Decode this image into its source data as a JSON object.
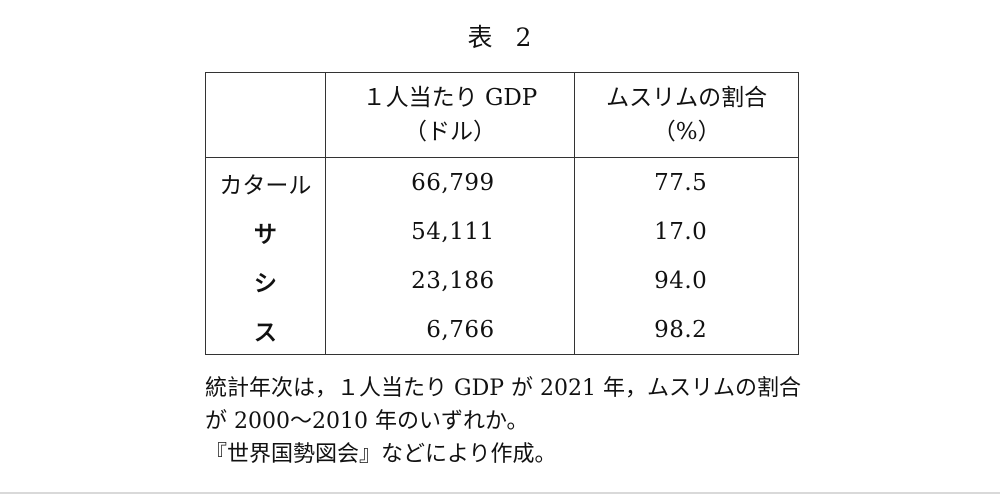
{
  "title": {
    "prefix": "表",
    "number": "2"
  },
  "table": {
    "headers": {
      "col1": "",
      "col2_line1": "１人当たり GDP",
      "col2_line2": "（ドル）",
      "col3_line1": "ムスリムの割合",
      "col3_line2": "（%）"
    },
    "rows": [
      {
        "country": "カタール",
        "gdp": "66,799",
        "muslim": "77.5"
      },
      {
        "country": "サ",
        "gdp": "54,111",
        "muslim": "17.0"
      },
      {
        "country": "シ",
        "gdp": "23,186",
        "muslim": "94.0"
      },
      {
        "country": "ス",
        "gdp": "6,766",
        "muslim": "98.2"
      }
    ]
  },
  "notes": {
    "line1": "統計年次は，１人当たり GDP が 2021 年，ムスリムの割合",
    "line2": "が 2000～2010 年のいずれか。",
    "line3": "『世界国勢図会』などにより作成。"
  }
}
